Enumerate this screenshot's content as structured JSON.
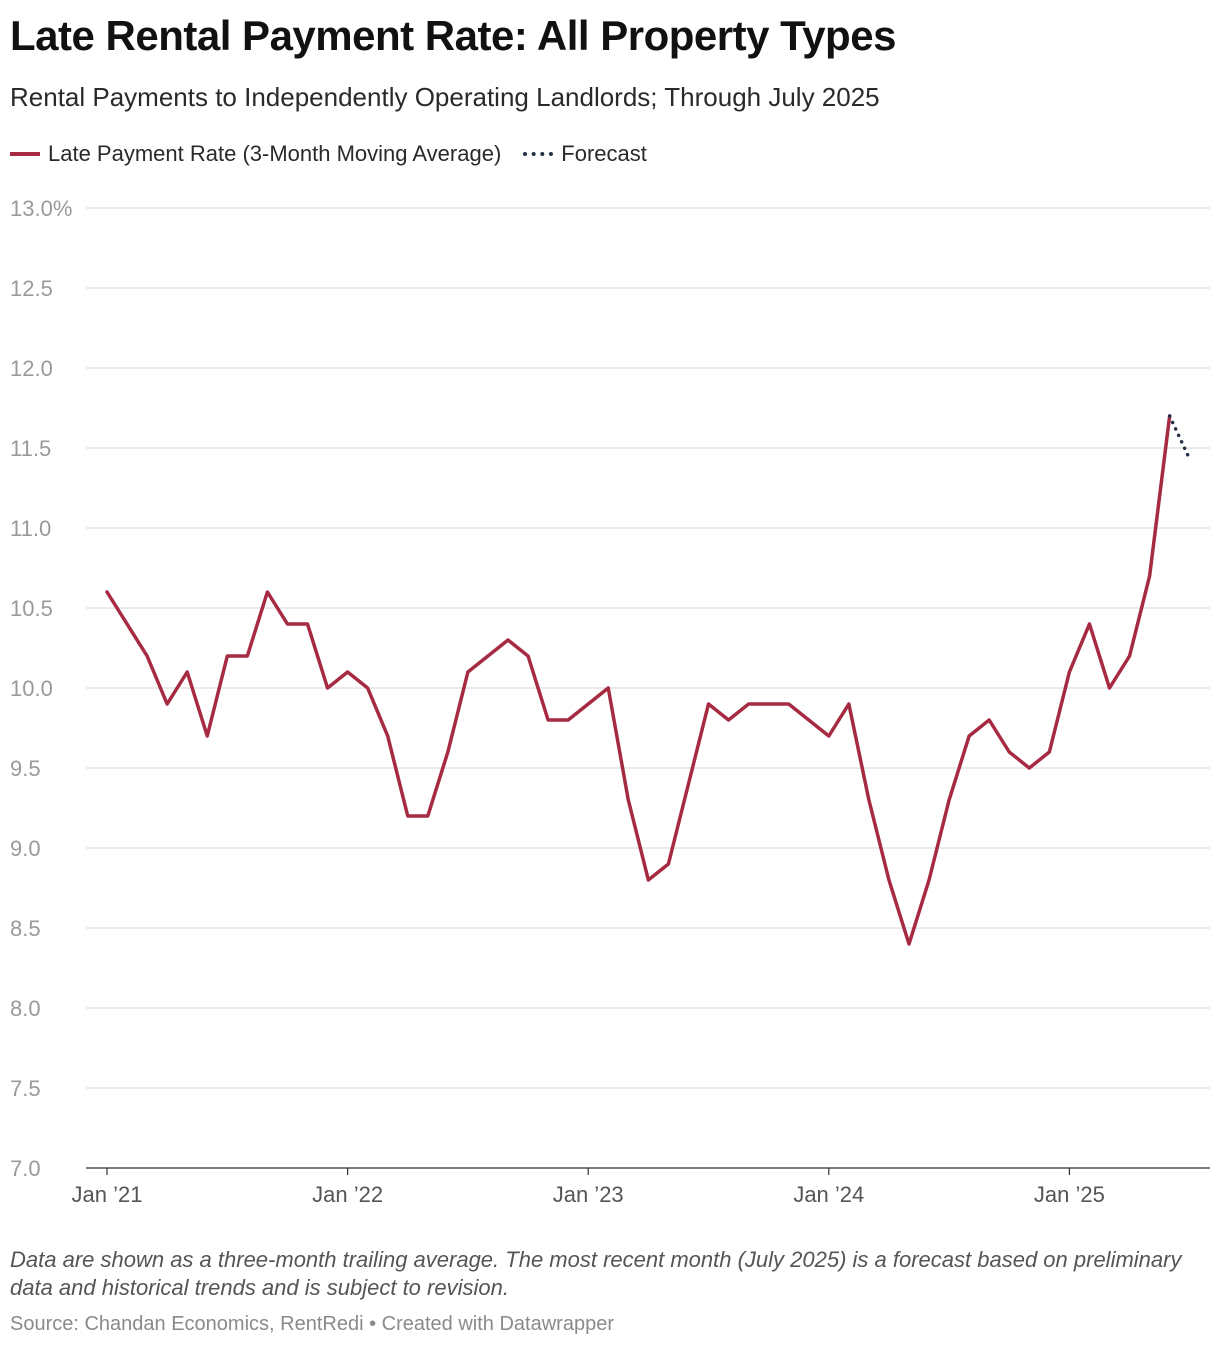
{
  "header": {
    "title": "Late Rental Payment Rate: All Property Types",
    "subtitle": "Rental Payments to Independently Operating Landlords; Through July 2025"
  },
  "legend": {
    "items": [
      {
        "label": "Late Payment Rate (3-Month Moving Average)",
        "style": "solid",
        "color": "#a62a42"
      },
      {
        "label": "Forecast",
        "style": "dotted",
        "color": "#27304a"
      }
    ]
  },
  "chart_data": {
    "type": "line",
    "title": "Late Rental Payment Rate: All Property Types",
    "subtitle": "Rental Payments to Independently Operating Landlords; Through July 2025",
    "xlabel": "",
    "ylabel": "",
    "ylim": [
      7.0,
      13.0
    ],
    "y_ticks": [
      7.0,
      7.5,
      8.0,
      8.5,
      9.0,
      9.5,
      10.0,
      10.5,
      11.0,
      11.5,
      12.0,
      12.5,
      13.0
    ],
    "y_tick_labels": [
      "7.0",
      "7.5",
      "8.0",
      "8.5",
      "9.0",
      "9.5",
      "10.0",
      "10.5",
      "11.0",
      "11.5",
      "12.0",
      "12.5",
      "13.0%"
    ],
    "x_ticks": [
      "2021-01",
      "2022-01",
      "2023-01",
      "2024-01",
      "2025-01"
    ],
    "x_tick_labels": [
      "Jan ’21",
      "Jan ’22",
      "Jan ’23",
      "Jan ’24",
      "Jan ’25"
    ],
    "x_range": [
      "2021-01",
      "2025-07"
    ],
    "grid": true,
    "legend_position": "top-left",
    "series": [
      {
        "name": "Late Payment Rate (3-Month Moving Average)",
        "color": "#a62a42",
        "style": "solid",
        "x": [
          "2021-01",
          "2021-02",
          "2021-03",
          "2021-04",
          "2021-05",
          "2021-06",
          "2021-07",
          "2021-08",
          "2021-09",
          "2021-10",
          "2021-11",
          "2021-12",
          "2022-01",
          "2022-02",
          "2022-03",
          "2022-04",
          "2022-05",
          "2022-06",
          "2022-07",
          "2022-08",
          "2022-09",
          "2022-10",
          "2022-11",
          "2022-12",
          "2023-01",
          "2023-02",
          "2023-03",
          "2023-04",
          "2023-05",
          "2023-06",
          "2023-07",
          "2023-08",
          "2023-09",
          "2023-10",
          "2023-11",
          "2023-12",
          "2024-01",
          "2024-02",
          "2024-03",
          "2024-04",
          "2024-05",
          "2024-06",
          "2024-07",
          "2024-08",
          "2024-09",
          "2024-10",
          "2024-11",
          "2024-12",
          "2025-01",
          "2025-02",
          "2025-03",
          "2025-04",
          "2025-05",
          "2025-06"
        ],
        "values": [
          10.6,
          10.4,
          10.2,
          9.9,
          10.1,
          9.7,
          10.2,
          10.2,
          10.6,
          10.4,
          10.4,
          10.0,
          10.1,
          10.0,
          9.7,
          9.2,
          9.2,
          9.6,
          10.1,
          10.2,
          10.3,
          10.2,
          9.8,
          9.8,
          9.9,
          10.0,
          9.3,
          8.8,
          8.9,
          9.4,
          9.9,
          9.8,
          9.9,
          9.9,
          9.9,
          9.8,
          9.7,
          9.9,
          9.3,
          8.8,
          8.4,
          8.8,
          9.3,
          9.7,
          9.8,
          9.6,
          9.5,
          9.6,
          10.1,
          10.4,
          10.0,
          10.2,
          10.7,
          11.7
        ]
      },
      {
        "name": "Forecast",
        "color": "#27304a",
        "style": "dotted",
        "x": [
          "2025-06",
          "2025-07"
        ],
        "values": [
          11.7,
          11.43
        ]
      }
    ]
  },
  "footer": {
    "notes": "Data are shown as a three-month trailing average. The most recent month (July 2025) is a forecast based on preliminary data and historical trends and is subject to revision.",
    "source": "Source: Chandan Economics, RentRedi • Created with Datawrapper"
  }
}
